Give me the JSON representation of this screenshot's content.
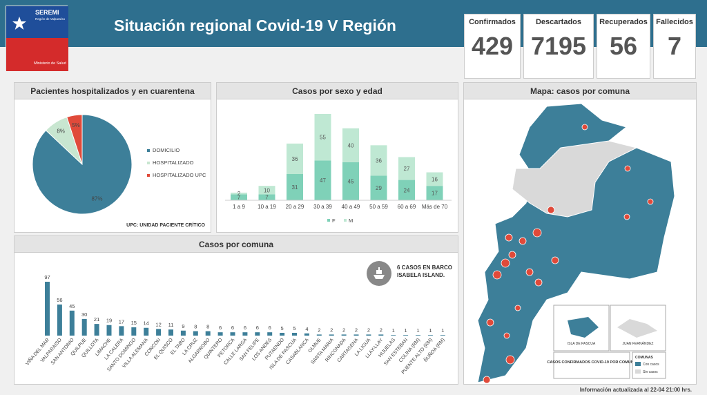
{
  "header": {
    "title": "Situación regional Covid-19 V Región",
    "logo_name": "SEREMI",
    "logo_sub": "Región de Valparaíso",
    "logo_ministry": "Ministerio de Salud"
  },
  "stats": [
    {
      "label": "Confirmados",
      "value": "429"
    },
    {
      "label": "Descartados",
      "value": "7195"
    },
    {
      "label": "Recuperados",
      "value": "56"
    },
    {
      "label": "Fallecidos",
      "value": "7"
    }
  ],
  "pie_panel": {
    "title": "Pacientes hospitalizados  y en cuarentena",
    "note": "UPC: UNIDAD PACIENTE CRÍTICO"
  },
  "sex_panel": {
    "title": "Casos por sexo y edad"
  },
  "comuna_panel": {
    "title": "Casos por comuna",
    "ship_note": "6 CASOS EN BARCO ISABELA ISLAND."
  },
  "map_panel": {
    "title": "Mapa: casos por comuna",
    "legend_title": "CASOS CONFIRMADOS COVID-19 POR COMUNA",
    "legend_head": "COMUNAS",
    "legend_with": "Con casos",
    "legend_without": "Sin casos",
    "inset_pascua": "ISLA DE PASCUA",
    "inset_fernandez": "JUAN FERNÁNDEZ"
  },
  "footer": "Información  actualizada al 22-04 21:00 hrs.",
  "colors": {
    "teal": "#3d7f99",
    "light_green": "#c8e6d0",
    "red": "#e04a3a",
    "mint": "#7fd1b8",
    "light_mint": "#bfe8d3",
    "gray": "#d9d9d9"
  },
  "chart_data": [
    {
      "type": "pie",
      "title": "Pacientes hospitalizados  y en cuarentena",
      "categories": [
        "DOMICILIO",
        "HOSPITALIZADO",
        "HOSPITALIZADO UPC"
      ],
      "values": [
        87,
        8,
        5
      ],
      "labels": [
        "87%",
        "8%",
        "5%"
      ]
    },
    {
      "type": "bar",
      "title": "Casos por sexo y edad",
      "categories": [
        "1 a 9",
        "10 a 19",
        "20 a 29",
        "30 a 39",
        "40 a 49",
        "50 a 59",
        "60 a 69",
        "Más de 70"
      ],
      "series": [
        {
          "name": "F",
          "values": [
            7,
            7,
            31,
            47,
            45,
            29,
            24,
            17
          ]
        },
        {
          "name": "M",
          "values": [
            2,
            10,
            36,
            55,
            40,
            36,
            27,
            16
          ]
        }
      ]
    },
    {
      "type": "bar",
      "title": "Casos por comuna",
      "categories": [
        "VIÑA DEL MAR",
        "VALPARAISO",
        "SAN ANTONIO",
        "QUILPUE",
        "QUILLOTA",
        "LIMACHE",
        "LA CALERA",
        "SANTO DOMINGO",
        "VILLA ALEMANA",
        "CONCON",
        "EL QUISCO",
        "EL TABO",
        "LA CRUZ",
        "ALGARROBO",
        "QUINTERO",
        "PETORCA",
        "CALLE LARGA",
        "SAN FELIPE",
        "LOS ANDES",
        "PUTAENDO",
        "ISLA DE PASCUA",
        "CASABLANCA",
        "OLMUE",
        "SANTA MARIA",
        "RINCONADA",
        "CARTAGENA",
        "LA LIGUA",
        "LLAY-LLAY",
        "HIJUELAS",
        "SAN ESTEBAN",
        "COLINA (RM)",
        "PUENTE ALTO (RM)",
        "ÑUÑOA (RM)"
      ],
      "values": [
        97,
        56,
        45,
        30,
        21,
        19,
        17,
        15,
        14,
        12,
        11,
        9,
        8,
        8,
        6,
        6,
        6,
        6,
        6,
        5,
        5,
        4,
        2,
        2,
        2,
        2,
        2,
        2,
        1,
        1,
        1,
        1,
        1
      ]
    }
  ]
}
